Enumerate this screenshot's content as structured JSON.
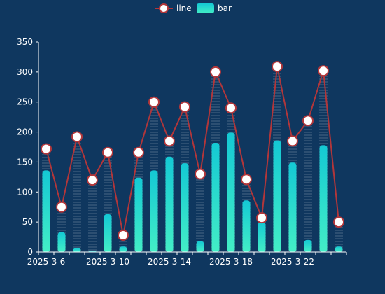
{
  "colors": {
    "background": "#0f375f",
    "line": "#b2363a",
    "point_fill": "#ffffff",
    "bar_top": "#14c8d4",
    "bar_bottom": "#43eec6",
    "axis": "#ffffff"
  },
  "legend": [
    {
      "name": "line",
      "icon": "line-circle-icon"
    },
    {
      "name": "bar",
      "icon": "bar-rect-icon"
    }
  ],
  "chart_data": {
    "type": "bar",
    "categories": [
      "2025-3-6",
      "2025-3-7",
      "2025-3-8",
      "2025-3-9",
      "2025-3-10",
      "2025-3-11",
      "2025-3-12",
      "2025-3-13",
      "2025-3-14",
      "2025-3-15",
      "2025-3-16",
      "2025-3-17",
      "2025-3-18",
      "2025-3-19",
      "2025-3-20",
      "2025-3-21",
      "2025-3-22",
      "2025-3-23",
      "2025-3-24",
      "2025-3-25"
    ],
    "visible_x_tick_labels": [
      "2025-3-6",
      "2025-3-10",
      "2025-3-14",
      "2025-3-18",
      "2025-3-22"
    ],
    "series": [
      {
        "name": "line",
        "type": "line",
        "values": [
          172,
          75,
          192,
          120,
          166,
          28,
          166,
          250,
          185,
          242,
          130,
          300,
          240,
          121,
          57,
          309,
          185,
          219,
          302,
          50
        ]
      },
      {
        "name": "bar",
        "type": "bar",
        "values": [
          136,
          33,
          6,
          0,
          63,
          9,
          124,
          136,
          159,
          148,
          18,
          182,
          199,
          86,
          50,
          186,
          149,
          20,
          178,
          9
        ]
      }
    ],
    "ylim": [
      0,
      350
    ],
    "yticks": [
      0,
      50,
      100,
      150,
      200,
      250,
      300,
      350
    ],
    "grid": false,
    "legend_position": "top-center"
  }
}
